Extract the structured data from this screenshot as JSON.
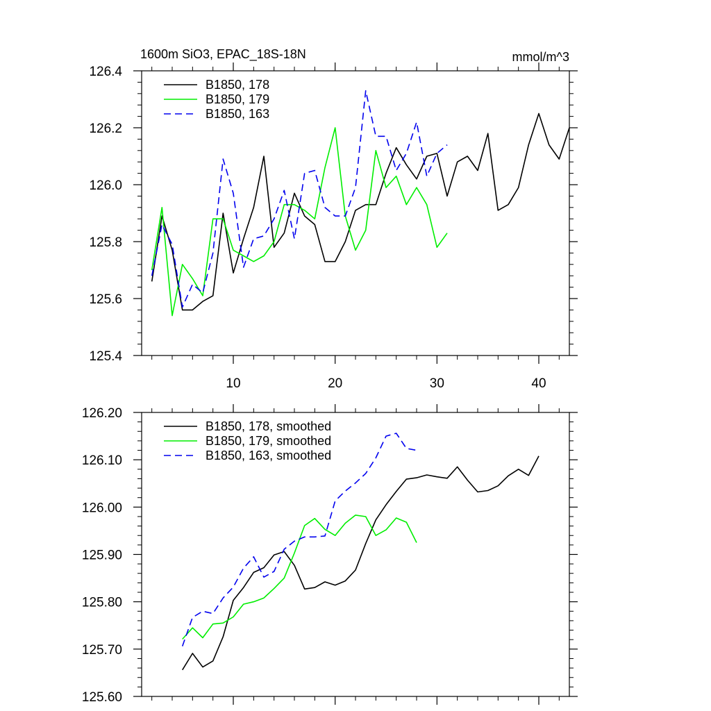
{
  "chart_data": [
    {
      "type": "line",
      "title": "1600m SiO3, EPAC_18S-18N",
      "units_label": "mmol/m^3",
      "xlabel": "",
      "ylabel": "",
      "xlim": [
        1,
        43
      ],
      "ylim": [
        125.4,
        126.4
      ],
      "x_ticks": [
        10,
        20,
        30,
        40
      ],
      "x_tick_labels": [
        "10",
        "20",
        "30",
        "40"
      ],
      "y_ticks": [
        125.4,
        125.6,
        125.8,
        126.0,
        126.2,
        126.4
      ],
      "y_tick_labels": [
        "125.4",
        "125.6",
        "125.8",
        "126.0",
        "126.2",
        "126.4"
      ],
      "grid": false,
      "legend_position": "top-left",
      "series": [
        {
          "name": "B1850, 178",
          "color": "#000000",
          "dash": "solid",
          "x": [
            2,
            3,
            4,
            5,
            6,
            7,
            8,
            9,
            10,
            11,
            12,
            13,
            14,
            15,
            16,
            17,
            18,
            19,
            20,
            21,
            22,
            23,
            24,
            25,
            26,
            27,
            28,
            29,
            30,
            31,
            32,
            33,
            34,
            35,
            36,
            37,
            38,
            39,
            40,
            41,
            42,
            43
          ],
          "y": [
            125.66,
            125.89,
            125.77,
            125.56,
            125.56,
            125.59,
            125.61,
            125.9,
            125.69,
            125.81,
            125.92,
            126.1,
            125.78,
            125.83,
            125.97,
            125.89,
            125.86,
            125.73,
            125.73,
            125.8,
            125.91,
            125.93,
            125.93,
            126.04,
            126.13,
            126.07,
            126.02,
            126.1,
            126.11,
            125.96,
            126.08,
            126.1,
            126.05,
            126.18,
            125.91,
            125.93,
            125.99,
            126.14,
            126.25,
            126.14,
            126.09,
            126.2
          ]
        },
        {
          "name": "B1850, 179",
          "color": "#00ee00",
          "dash": "solid",
          "x": [
            2,
            3,
            4,
            5,
            6,
            7,
            8,
            9,
            10,
            11,
            12,
            13,
            14,
            15,
            16,
            17,
            18,
            19,
            20,
            21,
            22,
            23,
            24,
            25,
            26,
            27,
            28,
            29,
            30,
            31
          ],
          "y": [
            125.7,
            125.92,
            125.54,
            125.72,
            125.67,
            125.61,
            125.88,
            125.88,
            125.77,
            125.75,
            125.73,
            125.75,
            125.8,
            125.93,
            125.93,
            125.91,
            125.88,
            126.06,
            126.2,
            125.89,
            125.77,
            125.84,
            126.12,
            125.99,
            126.03,
            125.93,
            125.99,
            125.93,
            125.78,
            125.83
          ]
        },
        {
          "name": "B1850, 163",
          "color": "#0000ee",
          "dash": "dashed",
          "x": [
            2,
            3,
            4,
            5,
            6,
            7,
            8,
            9,
            10,
            11,
            12,
            13,
            14,
            15,
            16,
            17,
            18,
            19,
            20,
            21,
            22,
            23,
            24,
            25,
            26,
            27,
            28,
            29,
            30,
            31
          ],
          "y": [
            125.68,
            125.86,
            125.79,
            125.57,
            125.65,
            125.62,
            125.76,
            126.09,
            125.97,
            125.71,
            125.81,
            125.82,
            125.88,
            125.98,
            125.81,
            126.04,
            126.05,
            125.92,
            125.89,
            125.89,
            125.99,
            126.33,
            126.17,
            126.17,
            126.05,
            126.11,
            126.22,
            126.03,
            126.11,
            126.14
          ]
        }
      ]
    },
    {
      "type": "line",
      "title": "",
      "xlabel": "",
      "ylabel": "",
      "xlim": [
        1,
        43
      ],
      "ylim": [
        125.6,
        126.2
      ],
      "x_ticks": [
        10,
        20,
        30,
        40
      ],
      "x_tick_labels": [],
      "y_ticks": [
        125.6,
        125.7,
        125.8,
        125.9,
        126.0,
        126.1,
        126.2
      ],
      "y_tick_labels": [
        "125.60",
        "125.70",
        "125.80",
        "125.90",
        "126.00",
        "126.10",
        "126.20"
      ],
      "grid": false,
      "legend_position": "top-left",
      "series": [
        {
          "name": "B1850, 178, smoothed",
          "color": "#000000",
          "dash": "solid",
          "x": [
            5,
            6,
            7,
            8,
            9,
            10,
            11,
            12,
            13,
            14,
            15,
            16,
            17,
            18,
            19,
            20,
            21,
            22,
            23,
            24,
            25,
            26,
            27,
            28,
            29,
            30,
            31,
            32,
            33,
            34,
            35,
            36,
            37,
            38,
            39,
            40
          ],
          "y": [
            125.656,
            125.691,
            125.662,
            125.675,
            125.726,
            125.803,
            125.83,
            125.862,
            125.872,
            125.899,
            125.906,
            125.877,
            125.827,
            125.83,
            125.842,
            125.835,
            125.844,
            125.867,
            125.923,
            125.973,
            126.005,
            126.033,
            126.059,
            126.062,
            126.068,
            126.064,
            126.061,
            126.085,
            126.057,
            126.032,
            126.035,
            126.045,
            126.066,
            126.08,
            126.067,
            126.108
          ]
        },
        {
          "name": "B1850, 179, smoothed",
          "color": "#00ee00",
          "dash": "solid",
          "x": [
            5,
            6,
            7,
            8,
            9,
            10,
            11,
            12,
            13,
            14,
            15,
            16,
            17,
            18,
            19,
            20,
            21,
            22,
            23,
            24,
            25,
            26,
            27,
            28
          ],
          "y": [
            125.721,
            125.745,
            125.724,
            125.753,
            125.755,
            125.768,
            125.795,
            125.8,
            125.808,
            125.828,
            125.85,
            125.903,
            125.961,
            125.976,
            125.953,
            125.94,
            125.966,
            125.983,
            125.98,
            125.94,
            125.952,
            125.977,
            125.968,
            125.925
          ]
        },
        {
          "name": "B1850, 163, smoothed",
          "color": "#0000ee",
          "dash": "dashed",
          "x": [
            5,
            6,
            7,
            8,
            9,
            10,
            11,
            12,
            13,
            14,
            15,
            16,
            17,
            18,
            19,
            20,
            21,
            22,
            23,
            24,
            25,
            26,
            27,
            28
          ],
          "y": [
            125.706,
            125.767,
            125.78,
            125.775,
            125.808,
            125.831,
            125.871,
            125.895,
            125.852,
            125.864,
            125.911,
            125.928,
            125.937,
            125.937,
            125.939,
            126.013,
            126.034,
            126.051,
            126.071,
            126.104,
            126.15,
            126.156,
            126.124,
            126.12
          ]
        }
      ]
    }
  ]
}
